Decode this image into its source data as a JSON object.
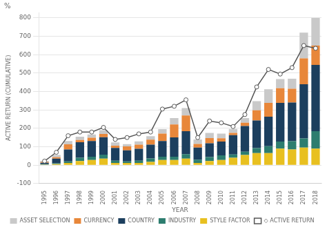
{
  "chart_data": {
    "type": "bar",
    "stacked": true,
    "xlabel": "YEAR",
    "ylabel": "ACTIVE RETURN (CUMULATIVE)",
    "annotations": [
      "%"
    ],
    "categories": [
      1995,
      1996,
      1997,
      1998,
      1999,
      2000,
      2001,
      2002,
      2003,
      2004,
      2005,
      2006,
      2007,
      2008,
      2009,
      2010,
      2011,
      2012,
      2013,
      2014,
      2015,
      2016,
      2017,
      2018
    ],
    "series": [
      {
        "name": "ASSET SELECTION",
        "type": "bar",
        "color": "#c9c9c9",
        "values": [
          5,
          12,
          18,
          18,
          18,
          20,
          18,
          12,
          18,
          18,
          25,
          35,
          40,
          25,
          28,
          25,
          22,
          25,
          50,
          75,
          50,
          55,
          140,
          150
        ]
      },
      {
        "name": "CURRENCY",
        "type": "bar",
        "color": "#e8873a",
        "values": [
          5,
          8,
          28,
          12,
          18,
          18,
          12,
          22,
          22,
          28,
          40,
          70,
          85,
          20,
          28,
          18,
          12,
          18,
          55,
          75,
          80,
          75,
          140,
          105
        ]
      },
      {
        "name": "COUNTRY",
        "type": "bar",
        "color": "#1c3f5e",
        "values": [
          8,
          25,
          65,
          85,
          85,
          95,
          70,
          60,
          65,
          75,
          85,
          105,
          125,
          65,
          75,
          75,
          105,
          140,
          150,
          160,
          210,
          210,
          295,
          360
        ]
      },
      {
        "name": "INDUSTRY",
        "type": "bar",
        "color": "#2d7d6f",
        "values": [
          2,
          5,
          8,
          18,
          18,
          22,
          12,
          8,
          12,
          18,
          18,
          18,
          25,
          18,
          22,
          25,
          18,
          18,
          28,
          38,
          38,
          45,
          50,
          95
        ]
      },
      {
        "name": "STYLE FACTOR",
        "type": "bar",
        "color": "#e8c020",
        "values": [
          3,
          5,
          12,
          22,
          28,
          35,
          12,
          12,
          12,
          18,
          28,
          28,
          35,
          12,
          22,
          28,
          40,
          55,
          65,
          65,
          90,
          85,
          95,
          90
        ]
      },
      {
        "name": "◇ ACTIVE RETURN",
        "type": "line",
        "color": "#555555",
        "marker": "circle",
        "line_style": "solid",
        "values": [
          22,
          70,
          160,
          180,
          180,
          205,
          140,
          150,
          170,
          180,
          305,
          320,
          355,
          150,
          240,
          230,
          210,
          275,
          425,
          520,
          495,
          530,
          650,
          635
        ]
      }
    ],
    "ylim": [
      -100,
      830
    ],
    "yticks": [
      -100,
      0,
      100,
      200,
      300,
      400,
      500,
      600,
      700,
      800
    ],
    "grid": true,
    "legend": "bottom"
  }
}
